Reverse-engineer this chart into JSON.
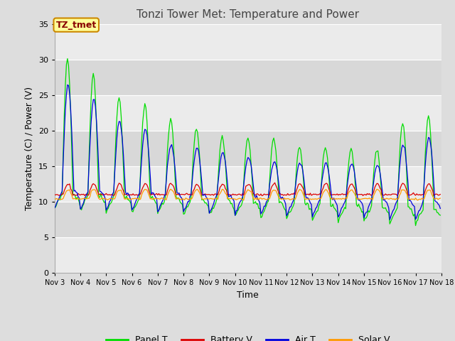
{
  "title": "Tonzi Tower Met: Temperature and Power",
  "xlabel": "Time",
  "ylabel": "Temperature (C) / Power (V)",
  "ylim": [
    0,
    35
  ],
  "yticks": [
    0,
    5,
    10,
    15,
    20,
    25,
    30,
    35
  ],
  "xlim_days": [
    3,
    18
  ],
  "xtick_labels": [
    "Nov 3",
    "Nov 4",
    "Nov 5",
    "Nov 6",
    "Nov 7",
    "Nov 8",
    "Nov 9",
    "Nov 10",
    "Nov 11",
    "Nov 12",
    "Nov 13",
    "Nov 14",
    "Nov 15",
    "Nov 16",
    "Nov 17",
    "Nov 18"
  ],
  "colors": {
    "panel_t": "#00dd00",
    "battery_v": "#dd0000",
    "air_t": "#0000dd",
    "solar_v": "#ff9900"
  },
  "legend_labels": [
    "Panel T",
    "Battery V",
    "Air T",
    "Solar V"
  ],
  "annotation_text": "TZ_tmet",
  "annotation_bg": "#ffff99",
  "annotation_border": "#cc8800",
  "annotation_color": "#880000",
  "fig_facecolor": "#dddddd",
  "plot_bg_light": "#ebebeb",
  "plot_bg_dark": "#d8d8d8",
  "grid_color": "#ffffff",
  "title_fontsize": 11,
  "axis_fontsize": 9,
  "tick_fontsize": 8
}
